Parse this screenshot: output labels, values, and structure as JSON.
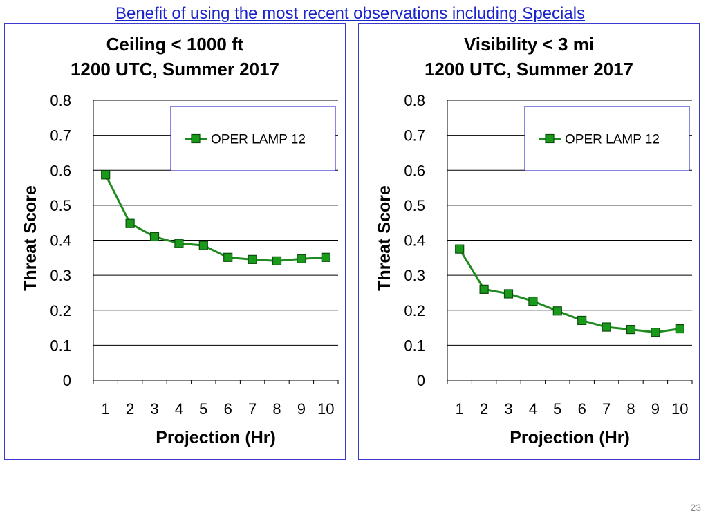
{
  "slide": {
    "title": "Benefit of using the most recent observations including Specials",
    "page_number": "23"
  },
  "charts": [
    {
      "title_line1": "Ceiling < 1000 ft",
      "title_line2": "1200 UTC, Summer 2017"
    },
    {
      "title_line1": "Visibility < 3 mi",
      "title_line2": "1200 UTC, Summer 2017"
    }
  ],
  "chart_data": [
    {
      "type": "line",
      "title": "Ceiling < 1000 ft 1200 UTC, Summer 2017",
      "xlabel": "Projection (Hr)",
      "ylabel": "Threat Score",
      "x": [
        1,
        2,
        3,
        4,
        5,
        6,
        7,
        8,
        9,
        10
      ],
      "series": [
        {
          "name": "OPER LAMP 12",
          "values": [
            0.587,
            0.448,
            0.41,
            0.391,
            0.385,
            0.351,
            0.345,
            0.341,
            0.347,
            0.351
          ]
        }
      ],
      "ylim": [
        0,
        0.8
      ],
      "yticks": [
        "0",
        "0.1",
        "0.2",
        "0.3",
        "0.4",
        "0.5",
        "0.6",
        "0.7",
        "0.8"
      ],
      "xticks": [
        "1",
        "2",
        "3",
        "4",
        "5",
        "6",
        "7",
        "8",
        "9",
        "10"
      ],
      "grid": true,
      "legend": "top-right",
      "color": "#1f8a1f",
      "marker_color": "#1a9a1a"
    },
    {
      "type": "line",
      "title": "Visibility < 3 mi 1200 UTC, Summer 2017",
      "xlabel": "Projection (Hr)",
      "ylabel": "Threat Score",
      "x": [
        1,
        2,
        3,
        4,
        5,
        6,
        7,
        8,
        9,
        10
      ],
      "series": [
        {
          "name": "OPER LAMP 12",
          "values": [
            0.375,
            0.26,
            0.247,
            0.226,
            0.198,
            0.171,
            0.152,
            0.145,
            0.137,
            0.147
          ]
        }
      ],
      "ylim": [
        0,
        0.8
      ],
      "yticks": [
        "0",
        "0.1",
        "0.2",
        "0.3",
        "0.4",
        "0.5",
        "0.6",
        "0.7",
        "0.8"
      ],
      "xticks": [
        "1",
        "2",
        "3",
        "4",
        "5",
        "6",
        "7",
        "8",
        "9",
        "10"
      ],
      "grid": true,
      "legend": "top-right",
      "color": "#1f8a1f",
      "marker_color": "#1a9a1a"
    }
  ]
}
